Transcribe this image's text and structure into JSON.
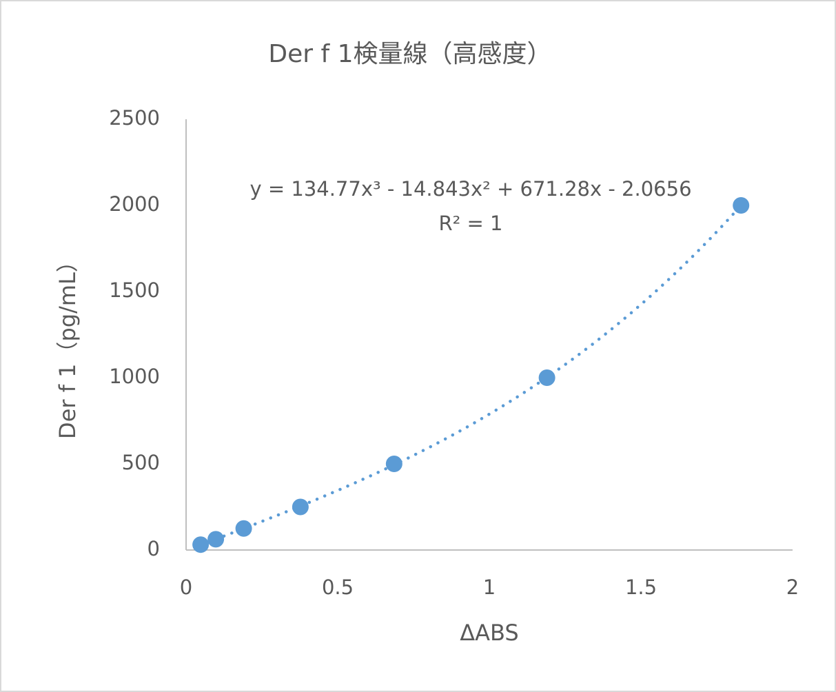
{
  "chart_data": {
    "type": "scatter",
    "title": "Der f 1検量線（高感度）",
    "x_label": "ΔABS",
    "y_label": "Der f 1（pg/mL）",
    "series": [
      {
        "name": "Der f 1",
        "color": "#5b9bd5",
        "x": [
          0.048,
          0.098,
          0.19,
          0.377,
          0.686,
          1.19,
          1.83
        ],
        "values": [
          31.25,
          62.5,
          125,
          250,
          500,
          1000,
          2000
        ]
      }
    ],
    "xlim": [
      0,
      2
    ],
    "xticks": [
      0,
      0.5,
      1,
      1.5,
      2
    ],
    "ylim": [
      0,
      2500
    ],
    "yticks": [
      0,
      500,
      1000,
      1500,
      2000,
      2500
    ],
    "grid": false,
    "trendline": {
      "type": "polynomial",
      "order": 3,
      "style": "dotted",
      "equation": "y = 134.77x³ - 14.843x² + 671.28x - 2.0656",
      "r2_label": "R² = 1"
    }
  }
}
